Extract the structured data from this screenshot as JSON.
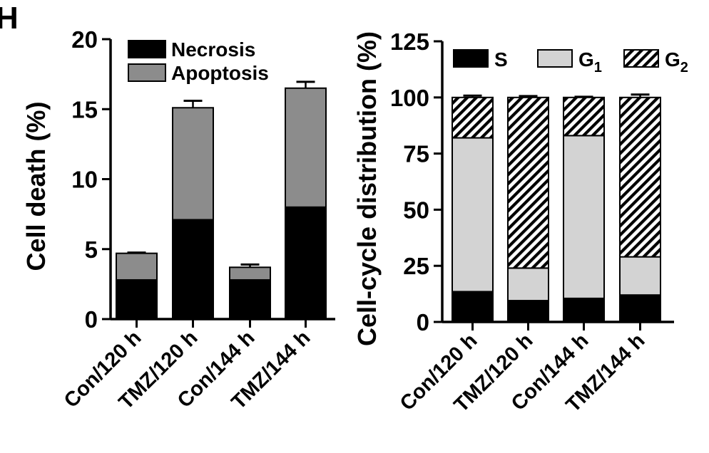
{
  "panel_label": "H",
  "chart_data": [
    {
      "type": "bar",
      "stacked": true,
      "ylabel": "Cell death (%)",
      "ylim": [
        0,
        20
      ],
      "yticks": [
        0,
        5,
        10,
        15,
        20
      ],
      "categories": [
        "Con/120 h",
        "TMZ/120 h",
        "Con/144 h",
        "TMZ/144 h"
      ],
      "legend_position": "top-left",
      "series": [
        {
          "name": "Necrosis",
          "color": "#000000",
          "pattern": "solid",
          "values": [
            2.8,
            7.1,
            2.8,
            8.0
          ],
          "errors": [
            0.25,
            0.3,
            0.2,
            0.35
          ]
        },
        {
          "name": "Apoptosis",
          "color": "#8c8c8c",
          "pattern": "solid",
          "values": [
            1.9,
            8.0,
            0.9,
            8.5
          ],
          "errors": [
            0.05,
            0.5,
            0.2,
            0.45
          ]
        }
      ]
    },
    {
      "type": "bar",
      "stacked": true,
      "ylabel": "Cell-cycle distribution (%)",
      "ylim": [
        0,
        125
      ],
      "yticks": [
        0,
        25,
        50,
        75,
        100,
        125
      ],
      "categories": [
        "Con/120 h",
        "TMZ/120 h",
        "Con/144 h",
        "TMZ/144 h"
      ],
      "legend_position": "top",
      "series": [
        {
          "name": "S",
          "color": "#000000",
          "pattern": "solid",
          "values": [
            13.5,
            9.5,
            10.5,
            12.0
          ],
          "errors": [
            0.5,
            0.4,
            0.3,
            0.4
          ]
        },
        {
          "name": "G1",
          "name_base": "G",
          "name_sub": "1",
          "color": "#d3d3d3",
          "pattern": "solid",
          "values": [
            68.5,
            14.5,
            72.5,
            17.0
          ],
          "errors": [
            1.2,
            0.6,
            0.4,
            1.0
          ]
        },
        {
          "name": "G2",
          "name_base": "G",
          "name_sub": "2",
          "color": "#000000",
          "pattern": "hatch",
          "values": [
            18.0,
            76.0,
            17.0,
            71.0
          ],
          "errors": [
            0.8,
            0.6,
            0.3,
            1.3
          ]
        }
      ]
    }
  ]
}
